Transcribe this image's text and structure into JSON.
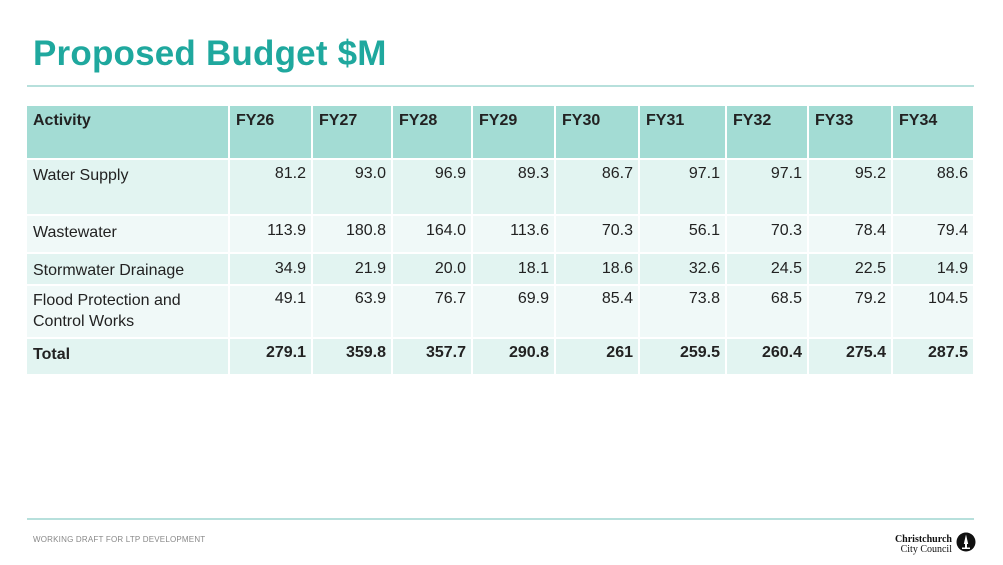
{
  "title": "Proposed Budget $M",
  "table": {
    "headers": [
      "Activity",
      "FY26",
      "FY27",
      "FY28",
      "FY29",
      "FY30",
      "FY31",
      "FY32",
      "FY33",
      "FY34"
    ],
    "rows": [
      {
        "activity": "Water Supply",
        "values": [
          "81.2",
          "93.0",
          "96.9",
          "89.3",
          "86.7",
          "97.1",
          "97.1",
          "95.2",
          "88.6"
        ]
      },
      {
        "activity": "Wastewater",
        "values": [
          "113.9",
          "180.8",
          "164.0",
          "113.6",
          "70.3",
          "56.1",
          "70.3",
          "78.4",
          "79.4"
        ]
      },
      {
        "activity": "Stormwater Drainage",
        "values": [
          "34.9",
          "21.9",
          "20.0",
          "18.1",
          "18.6",
          "32.6",
          "24.5",
          "22.5",
          "14.9"
        ]
      },
      {
        "activity": "Flood Protection and Control Works",
        "values": [
          "49.1",
          "63.9",
          "76.7",
          "69.9",
          "85.4",
          "73.8",
          "68.5",
          "79.2",
          "104.5"
        ]
      }
    ],
    "total": {
      "label": "Total",
      "values": [
        "279.1",
        "359.8",
        "357.7",
        "290.8",
        "261",
        "259.5",
        "260.4",
        "275.4",
        "287.5"
      ]
    }
  },
  "footer": {
    "note": "WORKING DRAFT FOR LTP DEVELOPMENT",
    "logo_line1": "Christchurch",
    "logo_line2": "City Council",
    "logo_icon": "cathedral-spire-icon"
  },
  "colors": {
    "accent": "#1fa89e",
    "header_bg": "#a3dcd4",
    "row_bg": "#e2f4f1",
    "row_alt_bg": "#f0f9f8"
  }
}
